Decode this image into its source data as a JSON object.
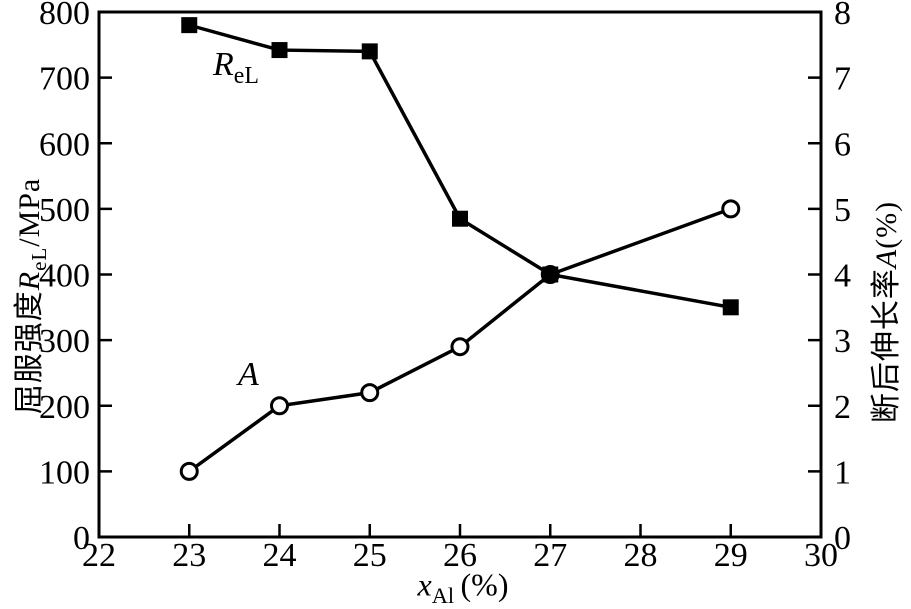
{
  "figure": {
    "background": "#ffffff",
    "ink_color": "#000000"
  },
  "chart_data": {
    "type": "line",
    "title": "",
    "grid": false,
    "legend_position": "inline-annotations",
    "x_axis": {
      "symbol": "x",
      "symbol_sub": "Al",
      "unit": "(%)",
      "min": 22,
      "max": 30,
      "ticks": [
        22,
        23,
        24,
        25,
        26,
        27,
        28,
        29,
        30
      ]
    },
    "left_y_axis": {
      "label_cn": "屈服强度",
      "symbol": "R",
      "symbol_sub": "eL",
      "unit": "/MPa",
      "min": 0,
      "max": 800,
      "ticks": [
        0,
        100,
        200,
        300,
        400,
        500,
        600,
        700,
        800
      ]
    },
    "right_y_axis": {
      "label_cn": "断后伸长率",
      "symbol": "A",
      "unit": "(%)",
      "min": 0,
      "max": 8,
      "ticks": [
        0,
        1,
        2,
        3,
        4,
        5,
        6,
        7,
        8
      ]
    },
    "series": [
      {
        "name": "yield-strength-ReL",
        "annotation_main": "R",
        "annotation_sub": "eL",
        "axis": "left",
        "marker": "filled-square",
        "line_color": "#000000",
        "x": [
          23,
          24,
          25,
          26,
          27,
          29
        ],
        "values": [
          780,
          742,
          740,
          485,
          400,
          350
        ]
      },
      {
        "name": "elongation-A",
        "annotation_main": "A",
        "annotation_sub": "",
        "axis": "right",
        "marker": "open-circle",
        "line_color": "#000000",
        "x": [
          23,
          24,
          25,
          26,
          27,
          29
        ],
        "values": [
          1.0,
          2.0,
          2.2,
          2.9,
          4.0,
          5.0
        ]
      }
    ]
  }
}
